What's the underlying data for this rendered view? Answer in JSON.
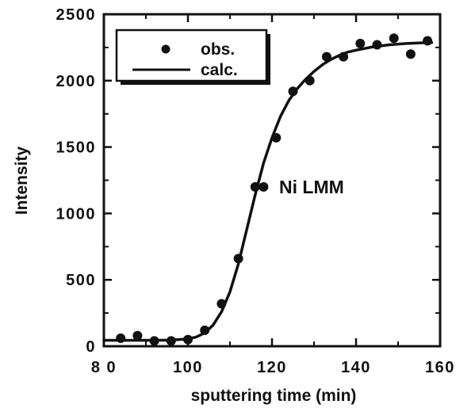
{
  "chart_data": {
    "type": "scatter",
    "xlabel": "sputtering time (min)",
    "ylabel": "Intensity",
    "xlim": [
      80,
      160
    ],
    "ylim": [
      0,
      2500
    ],
    "x_ticks": [
      80,
      100,
      120,
      140,
      160
    ],
    "y_ticks": [
      0,
      500,
      1000,
      1500,
      2000,
      2500
    ],
    "x_tick_labels": [
      "8 0",
      "100",
      "120",
      "140",
      "160"
    ],
    "y_tick_labels": [
      "0",
      "500",
      "1000",
      "1500",
      "2000",
      "2500"
    ],
    "annotation": "Ni LMM",
    "legend": {
      "placement": "top-left",
      "boxed": true
    },
    "series": [
      {
        "name": "obs.",
        "kind": "points",
        "x": [
          84,
          88,
          92,
          96,
          100,
          104,
          108,
          112,
          116,
          118,
          121,
          125,
          129,
          133,
          137,
          141,
          145,
          149,
          153,
          157
        ],
        "y": [
          60,
          80,
          40,
          40,
          50,
          120,
          320,
          660,
          1200,
          1200,
          1570,
          1920,
          2000,
          2180,
          2180,
          2280,
          2270,
          2320,
          2200,
          2300
        ]
      },
      {
        "name": "calc.",
        "kind": "line",
        "x": [
          80,
          84,
          88,
          92,
          96,
          100,
          102,
          104,
          106,
          108,
          110,
          112,
          114,
          116,
          118,
          120,
          122,
          124,
          126,
          128,
          130,
          132,
          134,
          136,
          138,
          140,
          144,
          148,
          152,
          156,
          158
        ],
        "y": [
          45,
          45,
          45,
          45,
          46,
          55,
          70,
          100,
          160,
          260,
          410,
          620,
          880,
          1140,
          1380,
          1570,
          1730,
          1850,
          1940,
          2010,
          2070,
          2120,
          2160,
          2190,
          2215,
          2230,
          2255,
          2270,
          2280,
          2285,
          2287
        ]
      }
    ]
  }
}
